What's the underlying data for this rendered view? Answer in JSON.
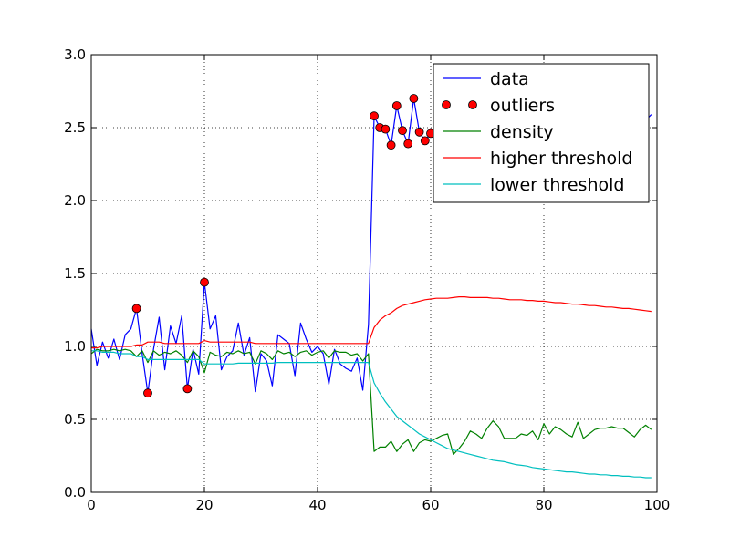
{
  "chart_data": {
    "type": "line",
    "title": "",
    "xlabel": "",
    "ylabel": "",
    "xlim": [
      0,
      100
    ],
    "ylim": [
      0.0,
      3.0
    ],
    "xticks": [
      0,
      20,
      40,
      60,
      80,
      100
    ],
    "xtick_labels": [
      "0",
      "20",
      "40",
      "60",
      "80",
      "100"
    ],
    "yticks": [
      0.0,
      0.5,
      1.0,
      1.5,
      2.0,
      2.5,
      3.0
    ],
    "ytick_labels": [
      "0.0",
      "0.5",
      "1.0",
      "1.5",
      "2.0",
      "2.5",
      "3.0"
    ],
    "grid": true,
    "legend_position": "top-right",
    "legend": [
      "data",
      "outliers",
      "density",
      "higher threshold",
      "lower threshold"
    ],
    "series": [
      {
        "name": "data",
        "color": "#0000ff",
        "style": "line",
        "x": [
          0,
          1,
          2,
          3,
          4,
          5,
          6,
          7,
          8,
          9,
          10,
          11,
          12,
          13,
          14,
          15,
          16,
          17,
          18,
          19,
          20,
          21,
          22,
          23,
          24,
          25,
          26,
          27,
          28,
          29,
          30,
          31,
          32,
          33,
          34,
          35,
          36,
          37,
          38,
          39,
          40,
          41,
          42,
          43,
          44,
          45,
          46,
          47,
          48,
          49,
          50,
          51,
          52,
          53,
          54,
          55,
          56,
          57,
          58,
          59,
          60,
          61,
          62,
          63,
          64,
          65,
          66,
          67,
          68,
          69,
          70,
          71,
          72,
          73,
          74,
          75,
          76,
          77,
          78,
          79,
          80,
          81,
          82,
          83,
          84,
          85,
          86,
          87,
          88,
          89,
          90,
          91,
          92,
          93,
          94,
          95,
          96,
          97,
          98,
          99
        ],
        "values": [
          1.12,
          0.87,
          1.03,
          0.92,
          1.05,
          0.91,
          1.08,
          1.12,
          1.26,
          0.95,
          0.68,
          0.98,
          1.2,
          0.84,
          1.14,
          1.02,
          1.21,
          0.71,
          0.98,
          0.81,
          1.44,
          1.12,
          1.21,
          0.84,
          0.93,
          0.97,
          1.16,
          0.94,
          1.06,
          0.69,
          0.95,
          0.9,
          0.73,
          1.08,
          1.05,
          1.02,
          0.8,
          1.16,
          1.05,
          0.96,
          1.0,
          0.95,
          0.74,
          0.98,
          0.88,
          0.85,
          0.83,
          0.92,
          0.7,
          1.15,
          2.58,
          2.5,
          2.49,
          2.38,
          2.65,
          2.48,
          2.39,
          2.7,
          2.47,
          2.41,
          2.46,
          2.44,
          2.47,
          2.52,
          2.55,
          2.5,
          2.46,
          2.4,
          2.52,
          2.47,
          2.49,
          2.55,
          2.45,
          2.43,
          2.48,
          2.51,
          2.46,
          2.44,
          2.5,
          2.47,
          2.45,
          2.43,
          2.49,
          2.52,
          2.46,
          2.48,
          2.5,
          2.45,
          2.47,
          2.51,
          2.49,
          2.44,
          2.47,
          2.5,
          2.46,
          2.48,
          2.45,
          2.52,
          2.55,
          2.59
        ]
      },
      {
        "name": "outliers",
        "color": "#ff0000",
        "style": "markers",
        "x": [
          8,
          10,
          17,
          20,
          50,
          51,
          52,
          53,
          54,
          55,
          56,
          57,
          58,
          59,
          60
        ],
        "values": [
          1.26,
          0.68,
          0.71,
          1.44,
          2.58,
          2.5,
          2.49,
          2.38,
          2.65,
          2.48,
          2.39,
          2.7,
          2.47,
          2.41,
          2.46
        ]
      },
      {
        "name": "density",
        "color": "#008000",
        "style": "line",
        "x": [
          0,
          1,
          2,
          3,
          4,
          5,
          6,
          7,
          8,
          9,
          10,
          11,
          12,
          13,
          14,
          15,
          16,
          17,
          18,
          19,
          20,
          21,
          22,
          23,
          24,
          25,
          26,
          27,
          28,
          29,
          30,
          31,
          32,
          33,
          34,
          35,
          36,
          37,
          38,
          39,
          40,
          41,
          42,
          43,
          44,
          45,
          46,
          47,
          48,
          49,
          50,
          51,
          52,
          53,
          54,
          55,
          56,
          57,
          58,
          59,
          60,
          61,
          62,
          63,
          64,
          65,
          66,
          67,
          68,
          69,
          70,
          71,
          72,
          73,
          74,
          75,
          76,
          77,
          78,
          79,
          80,
          81,
          82,
          83,
          84,
          85,
          86,
          87,
          88,
          89,
          90,
          91,
          92,
          93,
          94,
          95,
          96,
          97,
          98,
          99
        ],
        "values": [
          0.95,
          0.98,
          0.97,
          0.97,
          0.98,
          0.97,
          0.98,
          0.97,
          0.93,
          0.97,
          0.89,
          0.97,
          0.94,
          0.96,
          0.95,
          0.97,
          0.94,
          0.89,
          0.97,
          0.93,
          0.82,
          0.96,
          0.94,
          0.93,
          0.96,
          0.95,
          0.97,
          0.95,
          0.96,
          0.88,
          0.97,
          0.95,
          0.91,
          0.97,
          0.95,
          0.96,
          0.93,
          0.96,
          0.97,
          0.94,
          0.96,
          0.97,
          0.92,
          0.97,
          0.96,
          0.96,
          0.94,
          0.95,
          0.9,
          0.95,
          0.28,
          0.31,
          0.31,
          0.35,
          0.28,
          0.33,
          0.36,
          0.28,
          0.34,
          0.36,
          0.35,
          0.37,
          0.39,
          0.4,
          0.26,
          0.3,
          0.35,
          0.42,
          0.4,
          0.37,
          0.44,
          0.49,
          0.45,
          0.37,
          0.37,
          0.37,
          0.4,
          0.39,
          0.42,
          0.36,
          0.47,
          0.4,
          0.45,
          0.43,
          0.4,
          0.38,
          0.48,
          0.37,
          0.4,
          0.43,
          0.44,
          0.44,
          0.45,
          0.44,
          0.44,
          0.41,
          0.38,
          0.43,
          0.46,
          0.43
        ]
      },
      {
        "name": "higher threshold",
        "color": "#ff0000",
        "style": "line",
        "x": [
          0,
          1,
          2,
          3,
          4,
          5,
          6,
          7,
          8,
          9,
          10,
          11,
          12,
          13,
          14,
          15,
          16,
          17,
          18,
          19,
          20,
          21,
          22,
          23,
          24,
          25,
          26,
          27,
          28,
          29,
          30,
          31,
          32,
          33,
          34,
          35,
          36,
          37,
          38,
          39,
          40,
          41,
          42,
          43,
          44,
          45,
          46,
          47,
          48,
          49,
          50,
          51,
          52,
          53,
          54,
          55,
          56,
          57,
          58,
          59,
          60,
          61,
          62,
          63,
          64,
          65,
          66,
          67,
          68,
          69,
          70,
          71,
          72,
          73,
          74,
          75,
          76,
          77,
          78,
          79,
          80,
          81,
          82,
          83,
          84,
          85,
          86,
          87,
          88,
          89,
          90,
          91,
          92,
          93,
          94,
          95,
          96,
          97,
          98,
          99
        ],
        "values": [
          0.99,
          0.99,
          1.0,
          1.0,
          1.0,
          1.0,
          1.0,
          1.0,
          1.01,
          1.01,
          1.03,
          1.03,
          1.03,
          1.02,
          1.02,
          1.02,
          1.02,
          1.02,
          1.02,
          1.02,
          1.04,
          1.03,
          1.03,
          1.03,
          1.03,
          1.03,
          1.03,
          1.03,
          1.03,
          1.02,
          1.02,
          1.02,
          1.02,
          1.02,
          1.02,
          1.02,
          1.02,
          1.02,
          1.02,
          1.02,
          1.02,
          1.02,
          1.02,
          1.02,
          1.02,
          1.02,
          1.02,
          1.02,
          1.02,
          1.02,
          1.13,
          1.18,
          1.21,
          1.23,
          1.26,
          1.28,
          1.29,
          1.3,
          1.31,
          1.32,
          1.325,
          1.33,
          1.33,
          1.33,
          1.335,
          1.34,
          1.34,
          1.335,
          1.335,
          1.335,
          1.335,
          1.33,
          1.33,
          1.325,
          1.32,
          1.32,
          1.32,
          1.315,
          1.315,
          1.31,
          1.31,
          1.305,
          1.3,
          1.3,
          1.295,
          1.29,
          1.29,
          1.285,
          1.28,
          1.28,
          1.275,
          1.27,
          1.27,
          1.265,
          1.26,
          1.26,
          1.255,
          1.25,
          1.245,
          1.24
        ]
      },
      {
        "name": "lower threshold",
        "color": "#00bfbf",
        "style": "line",
        "x": [
          0,
          1,
          2,
          3,
          4,
          5,
          6,
          7,
          8,
          9,
          10,
          11,
          12,
          13,
          14,
          15,
          16,
          17,
          18,
          19,
          20,
          21,
          22,
          23,
          24,
          25,
          26,
          27,
          28,
          29,
          30,
          31,
          32,
          33,
          34,
          35,
          36,
          37,
          38,
          39,
          40,
          41,
          42,
          43,
          44,
          45,
          46,
          47,
          48,
          49,
          50,
          51,
          52,
          53,
          54,
          55,
          56,
          57,
          58,
          59,
          60,
          61,
          62,
          63,
          64,
          65,
          66,
          67,
          68,
          69,
          70,
          71,
          72,
          73,
          74,
          75,
          76,
          77,
          78,
          79,
          80,
          81,
          82,
          83,
          84,
          85,
          86,
          87,
          88,
          89,
          90,
          91,
          92,
          93,
          94,
          95,
          96,
          97,
          98,
          99
        ],
        "values": [
          0.97,
          0.97,
          0.96,
          0.96,
          0.96,
          0.95,
          0.95,
          0.95,
          0.93,
          0.93,
          0.91,
          0.91,
          0.91,
          0.91,
          0.91,
          0.91,
          0.91,
          0.91,
          0.91,
          0.91,
          0.88,
          0.88,
          0.88,
          0.88,
          0.88,
          0.88,
          0.885,
          0.885,
          0.885,
          0.885,
          0.885,
          0.885,
          0.885,
          0.89,
          0.89,
          0.89,
          0.89,
          0.89,
          0.89,
          0.89,
          0.89,
          0.89,
          0.89,
          0.89,
          0.89,
          0.89,
          0.89,
          0.89,
          0.89,
          0.89,
          0.75,
          0.68,
          0.62,
          0.57,
          0.52,
          0.49,
          0.46,
          0.43,
          0.4,
          0.38,
          0.36,
          0.34,
          0.32,
          0.3,
          0.29,
          0.28,
          0.27,
          0.26,
          0.25,
          0.24,
          0.23,
          0.22,
          0.215,
          0.21,
          0.2,
          0.19,
          0.185,
          0.18,
          0.17,
          0.165,
          0.16,
          0.155,
          0.15,
          0.145,
          0.14,
          0.14,
          0.135,
          0.13,
          0.125,
          0.125,
          0.12,
          0.12,
          0.115,
          0.115,
          0.11,
          0.11,
          0.105,
          0.105,
          0.1,
          0.1
        ]
      }
    ]
  }
}
